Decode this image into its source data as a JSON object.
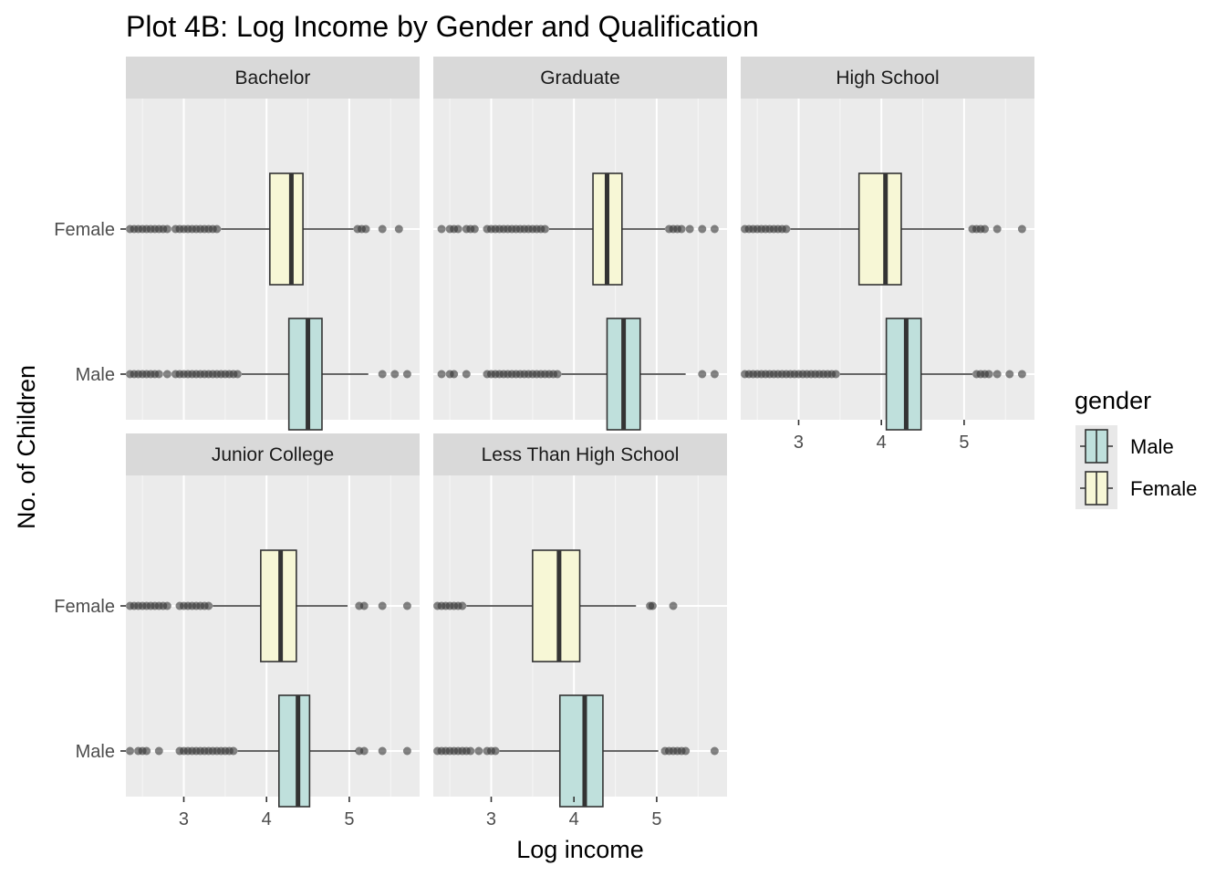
{
  "chart_data": {
    "type": "boxplot",
    "title": "Plot 4B: Log Income by Gender and Qualification",
    "xlabel": "Log income",
    "ylabel": "No. of Children",
    "xlim": [
      2.3,
      5.85
    ],
    "x_ticks": [
      3,
      4,
      5
    ],
    "categories": [
      "Female",
      "Male"
    ],
    "legend": {
      "title": "gender",
      "position": "right",
      "entries": [
        {
          "label": "Male",
          "color": "#bfe0dc"
        },
        {
          "label": "Female",
          "color": "#f7f7d6"
        }
      ]
    },
    "grid": true,
    "panels": [
      {
        "name": "Bachelor",
        "boxes": [
          {
            "gender": "Female",
            "whisker_low": 3.45,
            "q1": 4.04,
            "median": 4.3,
            "q3": 4.44,
            "whisker_high": 5.05,
            "outliers_low": [
              2.35,
              2.4,
              2.45,
              2.5,
              2.55,
              2.6,
              2.65,
              2.7,
              2.75,
              2.8,
              2.9,
              2.95,
              3.0,
              3.05,
              3.1,
              3.15,
              3.2,
              3.25,
              3.3,
              3.35,
              3.4
            ],
            "outliers_high": [
              5.1,
              5.15,
              5.2,
              5.4,
              5.6
            ]
          },
          {
            "gender": "Male",
            "whisker_low": 3.7,
            "q1": 4.27,
            "median": 4.5,
            "q3": 4.67,
            "whisker_high": 5.23,
            "outliers_low": [
              2.35,
              2.4,
              2.45,
              2.5,
              2.55,
              2.6,
              2.65,
              2.7,
              2.8,
              2.9,
              2.95,
              3.0,
              3.05,
              3.1,
              3.15,
              3.2,
              3.25,
              3.3,
              3.35,
              3.4,
              3.45,
              3.5,
              3.55,
              3.6,
              3.65
            ],
            "outliers_high": [
              5.4,
              5.55,
              5.7
            ]
          }
        ]
      },
      {
        "name": "Graduate",
        "boxes": [
          {
            "gender": "Female",
            "whisker_low": 3.7,
            "q1": 4.23,
            "median": 4.4,
            "q3": 4.58,
            "whisker_high": 5.1,
            "outliers_low": [
              2.4,
              2.5,
              2.55,
              2.6,
              2.7,
              2.75,
              2.8,
              2.95,
              3.0,
              3.05,
              3.1,
              3.15,
              3.2,
              3.25,
              3.3,
              3.35,
              3.4,
              3.45,
              3.5,
              3.55,
              3.6,
              3.65
            ],
            "outliers_high": [
              5.15,
              5.2,
              5.25,
              5.3,
              5.4,
              5.55,
              5.7
            ]
          },
          {
            "gender": "Male",
            "whisker_low": 3.85,
            "q1": 4.4,
            "median": 4.6,
            "q3": 4.8,
            "whisker_high": 5.35,
            "outliers_low": [
              2.4,
              2.5,
              2.55,
              2.7,
              2.95,
              3.0,
              3.05,
              3.1,
              3.15,
              3.2,
              3.25,
              3.3,
              3.35,
              3.4,
              3.45,
              3.5,
              3.55,
              3.6,
              3.65,
              3.7,
              3.75,
              3.8
            ],
            "outliers_high": [
              5.55,
              5.7
            ]
          }
        ]
      },
      {
        "name": "High School",
        "boxes": [
          {
            "gender": "Female",
            "whisker_low": 2.9,
            "q1": 3.73,
            "median": 4.05,
            "q3": 4.24,
            "whisker_high": 5.0,
            "outliers_low": [
              2.35,
              2.4,
              2.45,
              2.5,
              2.55,
              2.6,
              2.65,
              2.7,
              2.75,
              2.8,
              2.85
            ],
            "outliers_high": [
              5.1,
              5.15,
              5.2,
              5.25,
              5.4,
              5.7
            ]
          },
          {
            "gender": "Male",
            "whisker_low": 3.5,
            "q1": 4.06,
            "median": 4.3,
            "q3": 4.48,
            "whisker_high": 5.1,
            "outliers_low": [
              2.35,
              2.4,
              2.45,
              2.5,
              2.55,
              2.6,
              2.65,
              2.7,
              2.75,
              2.8,
              2.85,
              2.9,
              2.95,
              3.0,
              3.05,
              3.1,
              3.15,
              3.2,
              3.25,
              3.3,
              3.35,
              3.4,
              3.45
            ],
            "outliers_high": [
              5.15,
              5.2,
              5.25,
              5.3,
              5.4,
              5.55,
              5.7
            ]
          }
        ]
      },
      {
        "name": "Junior College",
        "boxes": [
          {
            "gender": "Female",
            "whisker_low": 3.35,
            "q1": 3.93,
            "median": 4.17,
            "q3": 4.36,
            "whisker_high": 4.98,
            "outliers_low": [
              2.35,
              2.4,
              2.45,
              2.5,
              2.55,
              2.6,
              2.65,
              2.7,
              2.75,
              2.8,
              2.95,
              3.0,
              3.05,
              3.1,
              3.15,
              3.2,
              3.25,
              3.3
            ],
            "outliers_high": [
              5.12,
              5.18,
              5.4,
              5.7
            ]
          },
          {
            "gender": "Male",
            "whisker_low": 3.65,
            "q1": 4.15,
            "median": 4.38,
            "q3": 4.52,
            "whisker_high": 5.08,
            "outliers_low": [
              2.35,
              2.45,
              2.5,
              2.55,
              2.7,
              2.95,
              3.0,
              3.05,
              3.1,
              3.15,
              3.2,
              3.25,
              3.3,
              3.35,
              3.4,
              3.45,
              3.5,
              3.55,
              3.6
            ],
            "outliers_high": [
              5.12,
              5.18,
              5.4,
              5.7
            ]
          }
        ]
      },
      {
        "name": "Less Than High School",
        "boxes": [
          {
            "gender": "Female",
            "whisker_low": 2.7,
            "q1": 3.5,
            "median": 3.82,
            "q3": 4.07,
            "whisker_high": 4.75,
            "outliers_low": [
              2.35,
              2.4,
              2.45,
              2.5,
              2.55,
              2.6,
              2.65
            ],
            "outliers_high": [
              4.92,
              4.95,
              5.2
            ]
          },
          {
            "gender": "Male",
            "whisker_low": 3.1,
            "q1": 3.83,
            "median": 4.13,
            "q3": 4.35,
            "whisker_high": 5.02,
            "outliers_low": [
              2.35,
              2.4,
              2.45,
              2.5,
              2.55,
              2.6,
              2.65,
              2.7,
              2.75,
              2.85,
              2.95,
              3.0,
              3.05
            ],
            "outliers_high": [
              5.1,
              5.15,
              5.2,
              5.25,
              5.3,
              5.35,
              5.7
            ]
          }
        ]
      }
    ]
  },
  "colors": {
    "panel_bg": "#ebebeb",
    "strip_bg": "#d9d9d9",
    "grid_major": "#ffffff",
    "box_stroke": "#333333",
    "outlier": "#333333",
    "male_fill": "#bfe0dc",
    "female_fill": "#f7f7d6"
  }
}
